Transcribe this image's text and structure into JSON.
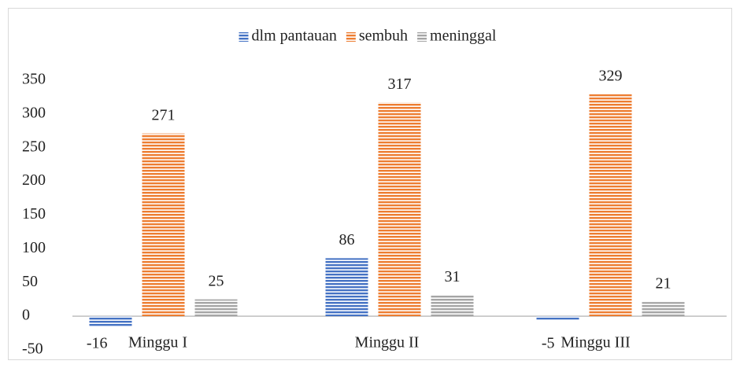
{
  "chart_data": {
    "type": "bar",
    "categories": [
      "Minggu I",
      "Minggu II",
      "Minggu III"
    ],
    "series": [
      {
        "name": "dlm pantauan",
        "color": "#4472c4",
        "values": [
          -16,
          86,
          -5
        ]
      },
      {
        "name": "sembuh",
        "color": "#ed7d31",
        "values": [
          271,
          317,
          329
        ]
      },
      {
        "name": "meninggal",
        "color": "#a5a5a5",
        "values": [
          25,
          31,
          21
        ]
      }
    ],
    "ylim": [
      -50,
      350
    ],
    "yticks": [
      -50,
      0,
      50,
      100,
      150,
      200,
      250,
      300,
      350
    ],
    "legend": "top",
    "grid": false
  }
}
